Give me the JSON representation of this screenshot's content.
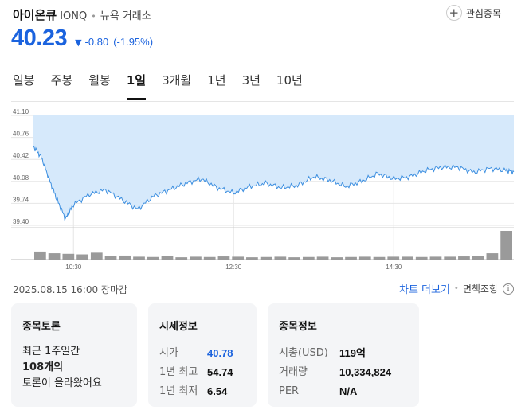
{
  "header": {
    "name": "아이온큐",
    "ticker": "IONQ",
    "separator": "•",
    "exchange": "뉴욕 거래소",
    "watchlist_label": "관심종목"
  },
  "quote": {
    "price": "40.23",
    "direction_icon": "▼",
    "change": "-0.80",
    "change_pct": "(-1.95%)"
  },
  "colors": {
    "down": "#1b63de",
    "line": "#3d8fe0",
    "fill": "#d6e9fb"
  },
  "tabs": [
    {
      "label": "일봉",
      "active": false
    },
    {
      "label": "주봉",
      "active": false
    },
    {
      "label": "월봉",
      "active": false
    },
    {
      "label": "1일",
      "active": true
    },
    {
      "label": "3개월",
      "active": false
    },
    {
      "label": "1년",
      "active": false
    },
    {
      "label": "3년",
      "active": false
    },
    {
      "label": "10년",
      "active": false
    }
  ],
  "chart_data": {
    "type": "area",
    "y_ticks": [
      "41.10",
      "40.76",
      "40.42",
      "40.08",
      "39.74",
      "39.40"
    ],
    "ylim": [
      39.4,
      41.1
    ],
    "reference_value": 41.03,
    "x_ticks": [
      "10:30",
      "12:30",
      "14:30"
    ],
    "x_tick_positions": [
      9.0,
      11.0,
      13.0
    ],
    "xlim": [
      8.5,
      14.5
    ],
    "x": [
      8.5,
      8.6,
      8.7,
      8.8,
      8.9,
      9.0,
      9.2,
      9.4,
      9.6,
      9.8,
      10.0,
      10.2,
      10.4,
      10.6,
      10.8,
      11.0,
      11.2,
      11.4,
      11.6,
      11.8,
      12.0,
      12.2,
      12.4,
      12.6,
      12.8,
      13.0,
      13.2,
      13.4,
      13.6,
      13.8,
      14.0,
      14.2,
      14.4,
      14.5
    ],
    "y": [
      40.62,
      40.45,
      40.1,
      39.78,
      39.5,
      39.72,
      39.88,
      39.95,
      39.8,
      39.65,
      39.85,
      39.95,
      40.05,
      40.12,
      39.98,
      39.9,
      40.0,
      40.05,
      39.98,
      40.02,
      40.15,
      40.1,
      40.0,
      40.08,
      40.2,
      40.12,
      40.15,
      40.25,
      40.3,
      40.3,
      40.22,
      40.28,
      40.25,
      40.23
    ],
    "volume": [
      0.28,
      0.22,
      0.2,
      0.18,
      0.24,
      0.12,
      0.14,
      0.1,
      0.09,
      0.12,
      0.08,
      0.1,
      0.09,
      0.11,
      0.1,
      0.08,
      0.09,
      0.1,
      0.08,
      0.09,
      0.1,
      0.08,
      0.09,
      0.1,
      0.09,
      0.1,
      0.1,
      0.09,
      0.1,
      0.1,
      0.11,
      0.12,
      0.22,
      1.0
    ]
  },
  "footer": {
    "timestamp": "2025.08.15 16:00 장마감",
    "chart_more": "차트 더보기",
    "separator": "•",
    "chart_view": "면책조항",
    "info_icon": "i"
  },
  "forum": {
    "title": "종목토론",
    "line1": "최근 1주일간",
    "count": "108개의",
    "line3": "토론이 올라왔어요"
  },
  "market_info": {
    "title": "시세정보",
    "open_label": "시가",
    "open_value": "40.78",
    "high_label": "1년 최고",
    "high_value": "54.74",
    "low_label": "1년 최저",
    "low_value": "6.54"
  },
  "stock_info": {
    "title": "종목정보",
    "mcap_label": "시총(USD)",
    "mcap_value": "119억",
    "volume_label": "거래량",
    "volume_value": "10,334,824",
    "per_label": "PER",
    "per_value": "N/A"
  }
}
